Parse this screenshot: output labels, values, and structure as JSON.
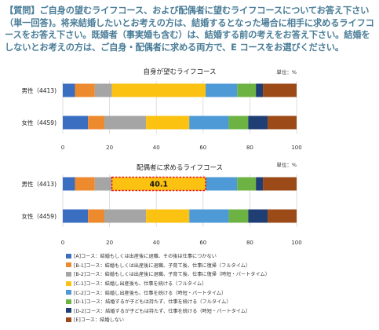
{
  "question": {
    "tag": "【質問】",
    "text": "ご自身の望むライフコース、および配偶者に望むライフコースについてお答え下さい（単一回答)。将来結婚したいとお考えの方は、結婚するとなった場合に相手に求めるライフコースをお答え下さい。既婚者（事実婚も含む）は、結婚する前の考えをお答え下さい。結婚をしないとお考えの方は、ご自身・配偶者に求める両方で、E コースをお選びください。"
  },
  "chart_data": [
    {
      "type": "bar",
      "stacked": true,
      "orientation": "horizontal",
      "title": "自身が望むライフコース",
      "unit": "単位：%",
      "categories": [
        "男性（4413)",
        "女性（4459)"
      ],
      "xlim": [
        0,
        100
      ],
      "xticks": [
        "0",
        "20",
        "40",
        "60",
        "80",
        "100"
      ],
      "series_values": [
        [
          5.2,
          10.8
        ],
        [
          8.5,
          7.0
        ],
        [
          7.3,
          17.8
        ],
        [
          40.1,
          18.5
        ],
        [
          13.5,
          16.9
        ],
        [
          8.0,
          8.3
        ],
        [
          3.0,
          8.3
        ],
        [
          14.4,
          12.4
        ]
      ]
    },
    {
      "type": "bar",
      "stacked": true,
      "orientation": "horizontal",
      "title": "配偶者に求めるライフコース",
      "unit": "単位：%",
      "categories": [
        "男性（4413)",
        "女性（4459)"
      ],
      "xlim": [
        0,
        100
      ],
      "xticks": [
        "0",
        "20",
        "40",
        "60",
        "80",
        "100"
      ],
      "highlight": {
        "series_index": 3,
        "category_index": 0,
        "label": "40.1"
      },
      "series_values": [
        [
          5.2,
          10.8
        ],
        [
          8.5,
          7.0
        ],
        [
          7.3,
          17.8
        ],
        [
          40.1,
          18.5
        ],
        [
          13.5,
          16.9
        ],
        [
          8.0,
          8.3
        ],
        [
          3.0,
          8.3
        ],
        [
          14.4,
          12.4
        ]
      ]
    }
  ],
  "legend": [
    {
      "label": "[A]コース：結婚もしくは出産後に退職、その後は仕事につかない",
      "color": "#3a6ec0"
    },
    {
      "label": "[B-1]コース：結婚もしくは出産後に退職、子育て後、仕事に復帰（フルタイム）",
      "color": "#ee8a2e"
    },
    {
      "label": "[B-2]コース：結婚もしくは出産後に退職、子育て後、仕事に復帰（時短・パートタイム）",
      "color": "#a5a5a5"
    },
    {
      "label": "[C-1]コース：結婚し出産後も、仕事を続ける（フルタイム）",
      "color": "#fbc211"
    },
    {
      "label": "[C-2]コース：結婚し出産後も、仕事を続ける（時短・パートタイム）",
      "color": "#4e9ad6"
    },
    {
      "label": "[D-1]コース：結婚するが子どもは持たず、仕事を続ける（フルタイム）",
      "color": "#6db344"
    },
    {
      "label": "[D-2]コース：結婚するが子どもは持たず、仕事を続ける（時短・パートタイム）",
      "color": "#1f3e73"
    },
    {
      "label": "[E]コース：結婚しない",
      "color": "#9c4a17"
    }
  ]
}
